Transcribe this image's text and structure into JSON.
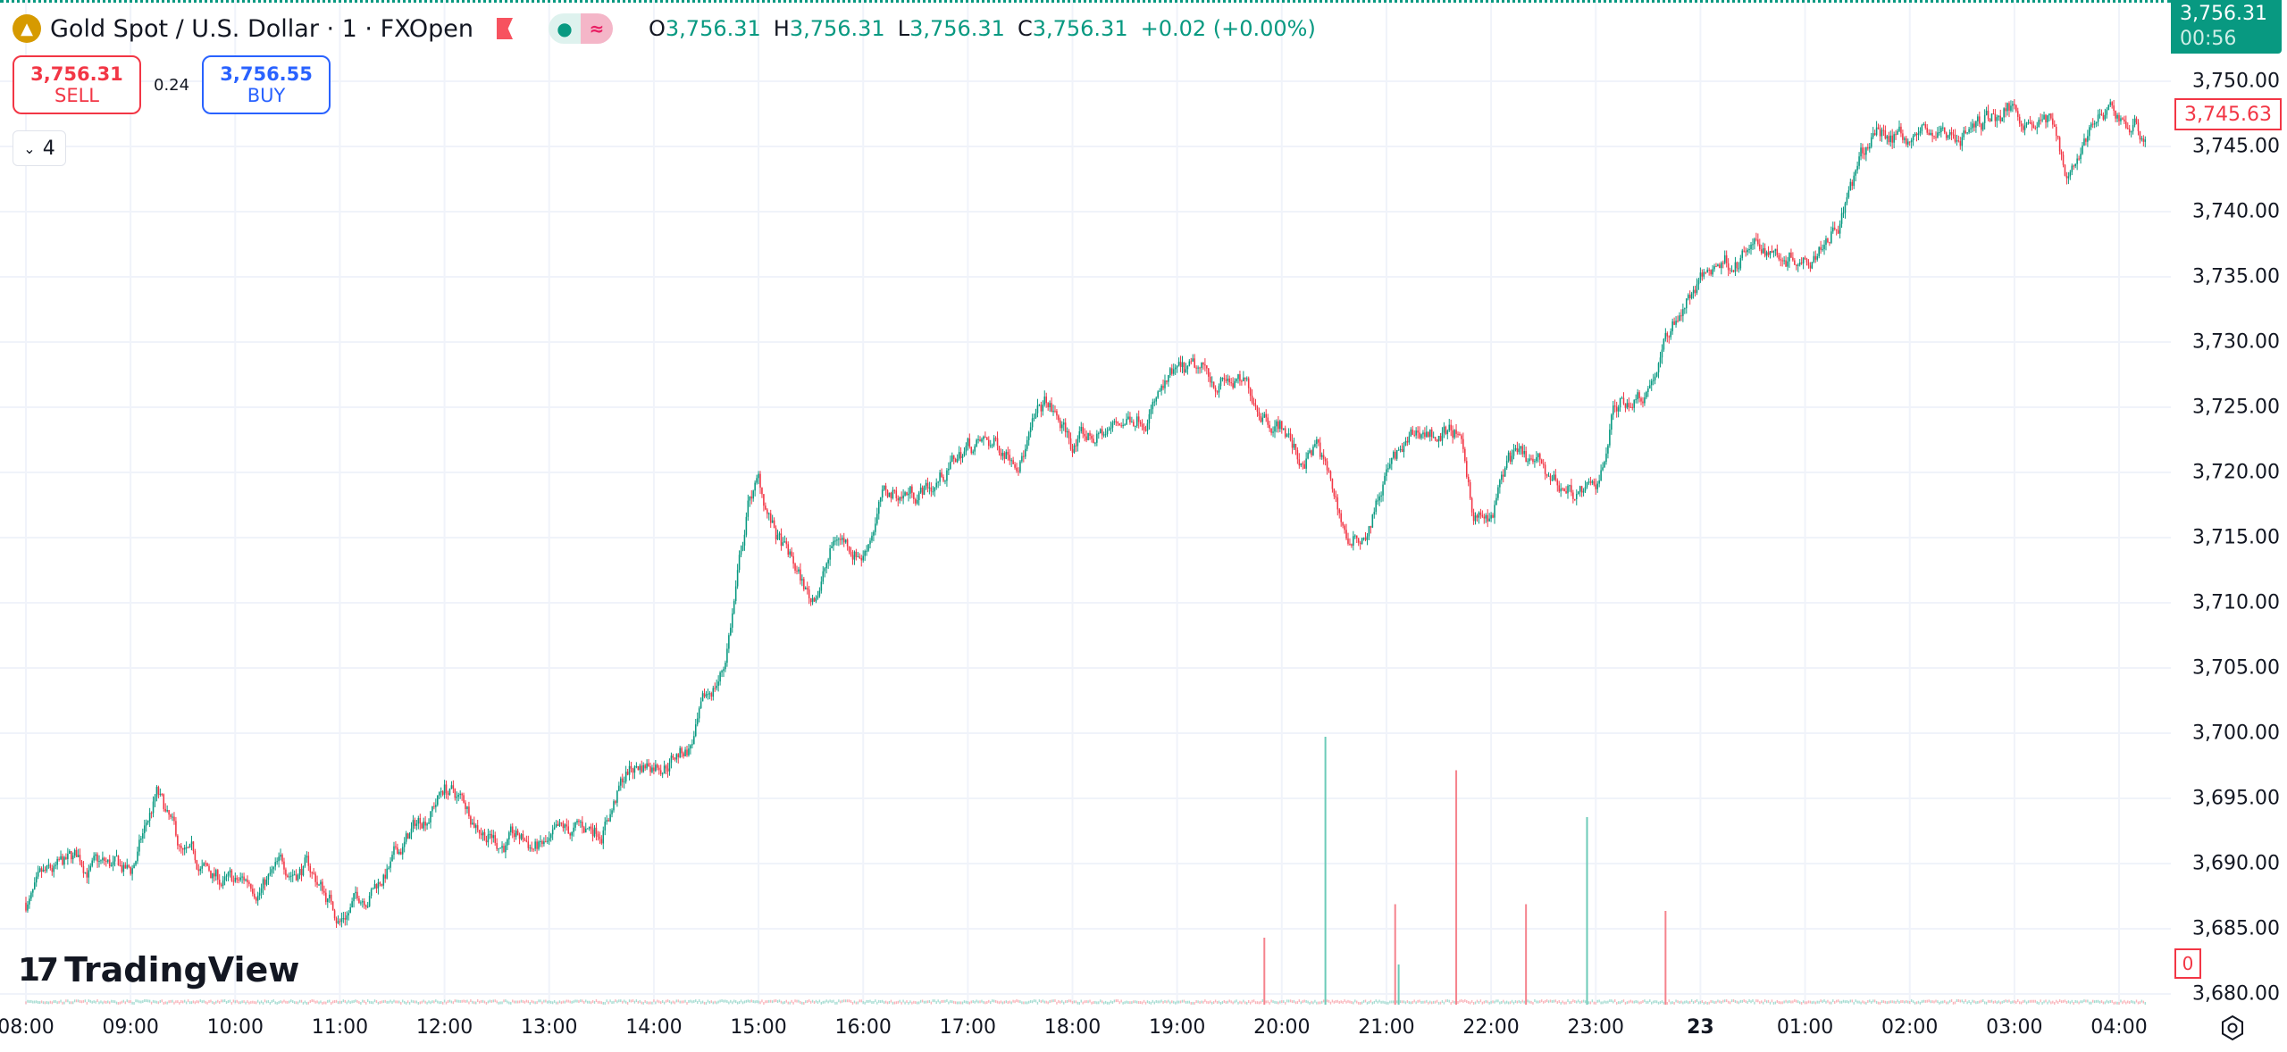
{
  "legend": {
    "symbol_title": "Gold Spot / U.S. Dollar · 1 · FXOpen",
    "market_status_icon": "dot-icon",
    "data_status_icon": "approx-icon",
    "ohlc": [
      {
        "k": "O",
        "v": "3,756.31"
      },
      {
        "k": "H",
        "v": "3,756.31"
      },
      {
        "k": "L",
        "v": "3,756.31"
      },
      {
        "k": "C",
        "v": "3,756.31"
      }
    ],
    "change": "+0.02 (+0.00%)"
  },
  "trade": {
    "sell_price": "3,756.31",
    "sell_label": "SELL",
    "spread": "0.24",
    "buy_price": "3,756.55",
    "buy_label": "BUY"
  },
  "indicators_toggle": {
    "count": "4"
  },
  "price_axis": {
    "current_price": "3,756.31",
    "countdown": "00:56",
    "marker_price": "3,745.63",
    "volume_marker": "0",
    "labels": [
      "3,750.00",
      "3,745.00",
      "3,740.00",
      "3,735.00",
      "3,730.00",
      "3,725.00",
      "3,720.00",
      "3,715.00",
      "3,710.00",
      "3,705.00",
      "3,700.00",
      "3,695.00",
      "3,690.00",
      "3,685.00",
      "3,680.00"
    ]
  },
  "time_axis": {
    "labels": [
      "08:00",
      "09:00",
      "10:00",
      "11:00",
      "12:00",
      "13:00",
      "14:00",
      "15:00",
      "16:00",
      "17:00",
      "18:00",
      "19:00",
      "20:00",
      "21:00",
      "22:00",
      "23:00",
      "23",
      "01:00",
      "02:00",
      "03:00",
      "04:00"
    ]
  },
  "branding": {
    "logo_text": "TradingView"
  },
  "colors": {
    "up": "#089981",
    "down": "#f23645",
    "grid": "#f0f3fa",
    "accent": "#2962ff"
  },
  "chart_data": {
    "type": "candlestick",
    "interval": "1",
    "ylim": [
      3680,
      3756
    ],
    "price_path": [
      [
        "08:00",
        3687
      ],
      [
        "08:30",
        3690
      ],
      [
        "09:00",
        3689
      ],
      [
        "09:15",
        3695
      ],
      [
        "09:30",
        3690
      ],
      [
        "10:00",
        3688
      ],
      [
        "10:40",
        3690
      ],
      [
        "11:00",
        3686
      ],
      [
        "11:30",
        3690
      ],
      [
        "12:00",
        3696
      ],
      [
        "12:30",
        3692
      ],
      [
        "13:00",
        3691
      ],
      [
        "13:30",
        3693
      ],
      [
        "13:45",
        3697
      ],
      [
        "14:00",
        3698
      ],
      [
        "14:20",
        3699
      ],
      [
        "14:40",
        3705
      ],
      [
        "14:55",
        3718
      ],
      [
        "15:00",
        3719
      ],
      [
        "15:10",
        3715
      ],
      [
        "15:30",
        3710
      ],
      [
        "15:45",
        3715
      ],
      [
        "16:00",
        3714
      ],
      [
        "16:10",
        3718
      ],
      [
        "16:40",
        3719
      ],
      [
        "17:00",
        3722
      ],
      [
        "17:30",
        3722
      ],
      [
        "17:45",
        3725
      ],
      [
        "18:00",
        3722
      ],
      [
        "18:20",
        3723
      ],
      [
        "18:40",
        3725
      ],
      [
        "19:00",
        3727
      ],
      [
        "19:30",
        3727
      ],
      [
        "20:00",
        3724
      ],
      [
        "20:10",
        3721
      ],
      [
        "20:20",
        3722
      ],
      [
        "20:40",
        3714
      ],
      [
        "20:50",
        3716
      ],
      [
        "21:00",
        3720
      ],
      [
        "21:20",
        3723
      ],
      [
        "21:40",
        3723
      ],
      [
        "21:50",
        3717
      ],
      [
        "22:00",
        3716
      ],
      [
        "22:10",
        3721
      ],
      [
        "22:40",
        3719
      ],
      [
        "23:00",
        3718
      ],
      [
        "23:10",
        3725
      ],
      [
        "23:30",
        3727
      ],
      [
        "23:50",
        3733
      ],
      [
        "00:10",
        3736
      ],
      [
        "00:30",
        3737
      ],
      [
        "01:00",
        3737
      ],
      [
        "01:20",
        3740
      ],
      [
        "01:40",
        3746
      ],
      [
        "02:00",
        3746
      ],
      [
        "02:30",
        3746
      ],
      [
        "03:00",
        3748
      ],
      [
        "03:20",
        3747
      ],
      [
        "03:30",
        3743
      ],
      [
        "03:45",
        3747
      ],
      [
        "04:00",
        3747
      ],
      [
        "04:15",
        3746
      ]
    ],
    "volume_spikes": [
      [
        "19:50",
        1,
        "down"
      ],
      [
        "20:25",
        4,
        "up"
      ],
      [
        "21:05",
        1.5,
        "down"
      ],
      [
        "21:40",
        3.5,
        "down"
      ],
      [
        "22:20",
        1.5,
        "down"
      ],
      [
        "22:55",
        2.8,
        "up"
      ],
      [
        "23:40",
        1.4,
        "down"
      ],
      [
        "21:07",
        0.6,
        "up"
      ]
    ]
  }
}
